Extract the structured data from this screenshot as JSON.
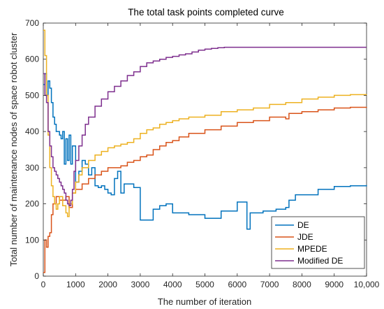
{
  "chart_data": {
    "type": "line",
    "title": "The total task points completed curve",
    "xlabel": "The number of iteration",
    "ylabel": "Total number of maintenance nodes of space robot cluster",
    "xlim": [
      0,
      10000
    ],
    "ylim": [
      0,
      700
    ],
    "xticks": [
      0,
      1000,
      2000,
      3000,
      4000,
      5000,
      6000,
      7000,
      8000,
      9000,
      10000
    ],
    "xtick_labels": [
      "0",
      "1000",
      "2000",
      "3000",
      "4000",
      "5000",
      "6000",
      "7000",
      "8000",
      "9000",
      "10,000"
    ],
    "yticks": [
      0,
      100,
      200,
      300,
      400,
      500,
      600,
      700
    ],
    "ytick_labels": [
      "0",
      "100",
      "200",
      "300",
      "400",
      "500",
      "600",
      "700"
    ],
    "grid": false,
    "legend_position": "bottom-right",
    "series": [
      {
        "name": "DE",
        "color": "#0072BD",
        "x": [
          0,
          50,
          100,
          150,
          200,
          250,
          300,
          350,
          400,
          500,
          550,
          600,
          650,
          700,
          750,
          800,
          850,
          900,
          1000,
          1100,
          1200,
          1300,
          1400,
          1500,
          1600,
          1700,
          1800,
          1900,
          2000,
          2100,
          2200,
          2300,
          2400,
          2500,
          2600,
          2800,
          3000,
          3200,
          3400,
          3600,
          3800,
          4000,
          4500,
          5000,
          5500,
          6000,
          6300,
          6400,
          6800,
          7200,
          7500,
          7600,
          7800,
          8000,
          8500,
          9000,
          9500,
          10000
        ],
        "y": [
          530,
          560,
          500,
          540,
          520,
          480,
          440,
          420,
          400,
          390,
          380,
          400,
          310,
          380,
          320,
          390,
          310,
          360,
          260,
          290,
          320,
          310,
          280,
          300,
          250,
          245,
          250,
          240,
          230,
          225,
          270,
          290,
          230,
          255,
          255,
          245,
          155,
          155,
          185,
          195,
          200,
          175,
          170,
          160,
          180,
          205,
          130,
          175,
          180,
          185,
          190,
          210,
          225,
          225,
          240,
          248,
          250,
          252
        ]
      },
      {
        "name": "JDE",
        "color": "#D95319",
        "x": [
          0,
          50,
          100,
          150,
          200,
          250,
          300,
          400,
          500,
          600,
          700,
          800,
          900,
          1000,
          1200,
          1400,
          1600,
          1800,
          2000,
          2200,
          2400,
          2600,
          2800,
          3000,
          3200,
          3400,
          3600,
          3800,
          4000,
          4200,
          4500,
          5000,
          5500,
          6000,
          6500,
          7000,
          7500,
          7600,
          8000,
          8500,
          9000,
          9500,
          10000
        ],
        "y": [
          10,
          100,
          80,
          110,
          120,
          170,
          200,
          220,
          210,
          210,
          220,
          190,
          230,
          240,
          255,
          270,
          280,
          290,
          300,
          300,
          305,
          315,
          320,
          330,
          335,
          350,
          360,
          370,
          375,
          385,
          395,
          405,
          415,
          425,
          430,
          440,
          435,
          450,
          455,
          460,
          465,
          467,
          468
        ]
      },
      {
        "name": "MPEDE",
        "color": "#EDB120",
        "x": [
          0,
          50,
          100,
          150,
          200,
          250,
          300,
          350,
          400,
          450,
          500,
          600,
          700,
          750,
          800,
          900,
          1000,
          1100,
          1200,
          1400,
          1600,
          1800,
          2000,
          2200,
          2400,
          2600,
          2800,
          3000,
          3200,
          3400,
          3600,
          3800,
          4000,
          4200,
          4500,
          5000,
          5500,
          6000,
          6500,
          7000,
          7500,
          8000,
          8500,
          9000,
          9500,
          10000
        ],
        "y": [
          680,
          610,
          500,
          390,
          300,
          250,
          220,
          200,
          185,
          200,
          220,
          195,
          175,
          165,
          200,
          230,
          260,
          280,
          300,
          320,
          335,
          345,
          355,
          360,
          365,
          370,
          380,
          395,
          405,
          410,
          420,
          425,
          430,
          435,
          440,
          445,
          455,
          460,
          465,
          475,
          480,
          490,
          495,
          500,
          502,
          503
        ]
      },
      {
        "name": "Modified DE",
        "color": "#7E2F8E",
        "x": [
          0,
          50,
          100,
          150,
          200,
          250,
          300,
          350,
          400,
          450,
          500,
          550,
          600,
          650,
          700,
          750,
          800,
          850,
          900,
          950,
          1000,
          1100,
          1200,
          1300,
          1400,
          1600,
          1800,
          2000,
          2200,
          2400,
          2600,
          2800,
          3000,
          3200,
          3400,
          3600,
          3800,
          4000,
          4200,
          4400,
          4600,
          4800,
          5000,
          5200,
          5400,
          5600,
          6000,
          7000,
          8000,
          9000,
          10000
        ],
        "y": [
          560,
          500,
          480,
          400,
          360,
          330,
          300,
          290,
          280,
          270,
          260,
          250,
          240,
          230,
          210,
          200,
          195,
          210,
          240,
          290,
          320,
          360,
          390,
          420,
          440,
          470,
          490,
          510,
          525,
          540,
          555,
          565,
          580,
          590,
          595,
          600,
          605,
          608,
          612,
          615,
          620,
          625,
          628,
          630,
          632,
          633,
          633,
          633,
          633,
          633,
          633
        ]
      }
    ]
  }
}
